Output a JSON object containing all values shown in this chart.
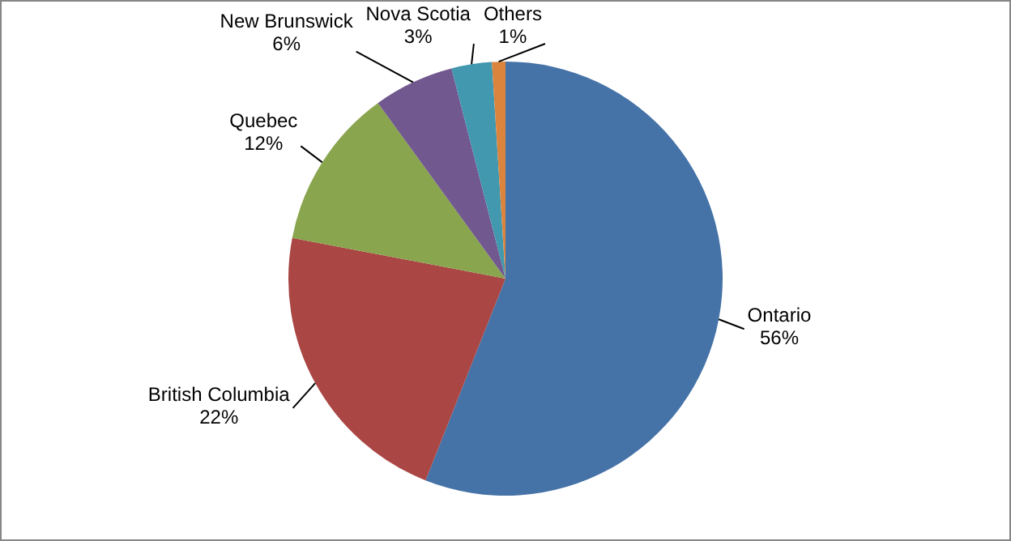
{
  "chart_data": {
    "type": "pie",
    "categories": [
      "Ontario",
      "British Columbia",
      "Quebec",
      "New Brunswick",
      "Nova Scotia",
      "Others"
    ],
    "values": [
      56,
      22,
      12,
      6,
      3,
      1
    ],
    "value_labels": [
      "56%",
      "22%",
      "12%",
      "6%",
      "3%",
      "1%"
    ],
    "colors": [
      "#4572a7",
      "#aa4643",
      "#89a54e",
      "#71588f",
      "#4198af",
      "#db843d"
    ],
    "legend": false
  }
}
